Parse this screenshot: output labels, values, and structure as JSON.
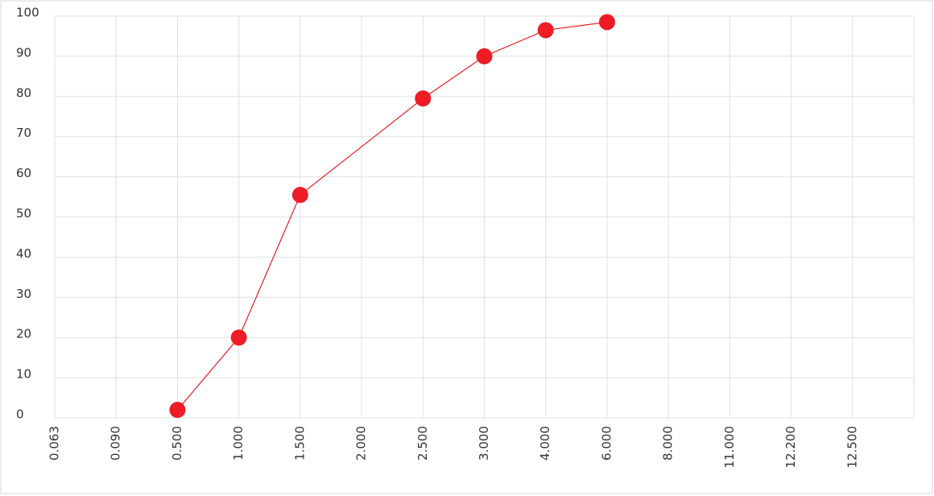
{
  "chart_data": {
    "type": "line",
    "categories": [
      "0.063",
      "0.090",
      "0.500",
      "1.000",
      "1.500",
      "2.000",
      "2.500",
      "3.000",
      "4.000",
      "6.000",
      "8.000",
      "11.000",
      "12.200",
      "12.500"
    ],
    "series": [
      {
        "color": "#ee1c25",
        "values": [
          null,
          null,
          2,
          20,
          55.5,
          null,
          79.5,
          90,
          96.5,
          98.5,
          null,
          null,
          null,
          null
        ]
      }
    ],
    "ylim": [
      0,
      100
    ],
    "yticks": [
      0,
      10,
      20,
      30,
      40,
      50,
      60,
      70,
      80,
      90,
      100
    ],
    "grid": true
  }
}
